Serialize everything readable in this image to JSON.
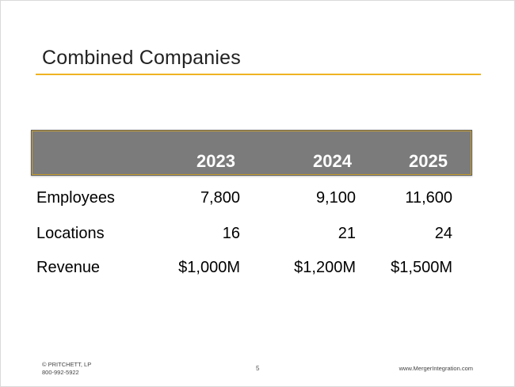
{
  "slide": {
    "title": "Combined Companies",
    "accent_color": "#f0b323",
    "header_band_color": "#7b7b7b"
  },
  "table": {
    "columns": [
      "2023",
      "2024",
      "2025"
    ],
    "rows": [
      {
        "label": "Employees",
        "values": [
          "7,800",
          "9,100",
          "11,600"
        ]
      },
      {
        "label": "Locations",
        "values": [
          "16",
          "21",
          "24"
        ]
      },
      {
        "label": "Revenue",
        "values": [
          "$1,000M",
          "$1,200M",
          "$1,500M"
        ]
      }
    ]
  },
  "footer": {
    "copyright": "© PRITCHETT, LP",
    "phone": "800-992-5922",
    "page_number": "5",
    "website": "www.MergerIntegration.com"
  }
}
